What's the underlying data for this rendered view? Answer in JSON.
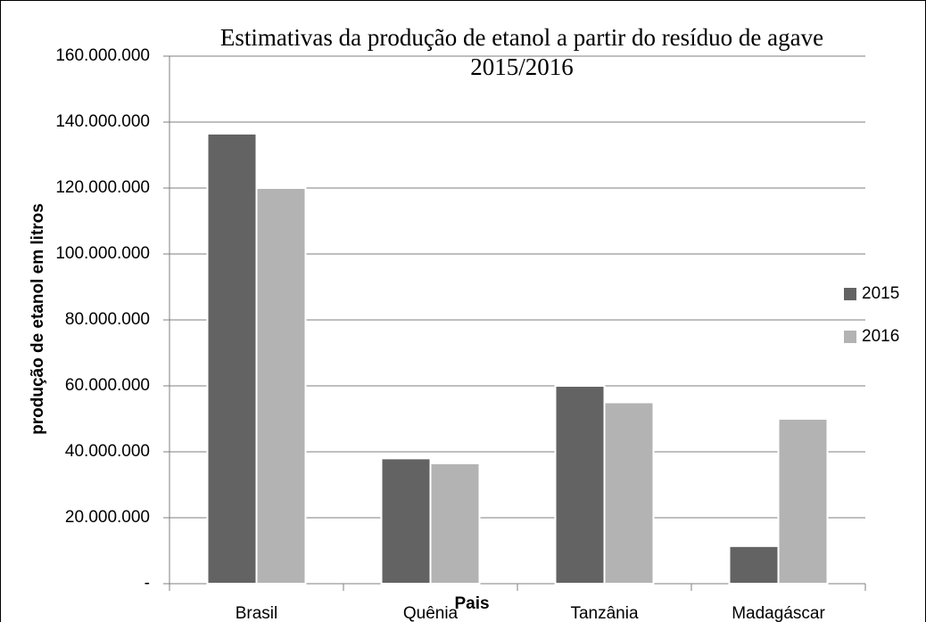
{
  "chart_data": {
    "type": "bar",
    "title": [
      "Estimativas da produção de etanol a partir do resíduo de agave",
      "2015/2016"
    ],
    "y_label": "produção de etanol em litros",
    "x_label": "Pais",
    "categories": [
      "Brasil",
      "Quênia",
      "Tanzânia",
      "Madagáscar"
    ],
    "series": [
      {
        "name": "2015",
        "color": "#636363",
        "values": [
          136500000,
          38000000,
          60000000,
          11400000
        ]
      },
      {
        "name": "2016",
        "color": "#b3b3b3",
        "values": [
          120000000,
          36500000,
          55000000,
          50000000
        ]
      }
    ],
    "ylim": [
      0,
      160000000
    ],
    "yticks": [
      {
        "value": 0,
        "label": "-"
      },
      {
        "value": 20000000,
        "label": "20.000.000"
      },
      {
        "value": 40000000,
        "label": "40.000.000"
      },
      {
        "value": 60000000,
        "label": "60.000.000"
      },
      {
        "value": 80000000,
        "label": "80.000.000"
      },
      {
        "value": 100000000,
        "label": "100.000.000"
      },
      {
        "value": 120000000,
        "label": "120.000.000"
      },
      {
        "value": 140000000,
        "label": "140.000.000"
      },
      {
        "value": 160000000,
        "label": "160.000.000"
      }
    ],
    "grid": true,
    "legend": "right"
  }
}
